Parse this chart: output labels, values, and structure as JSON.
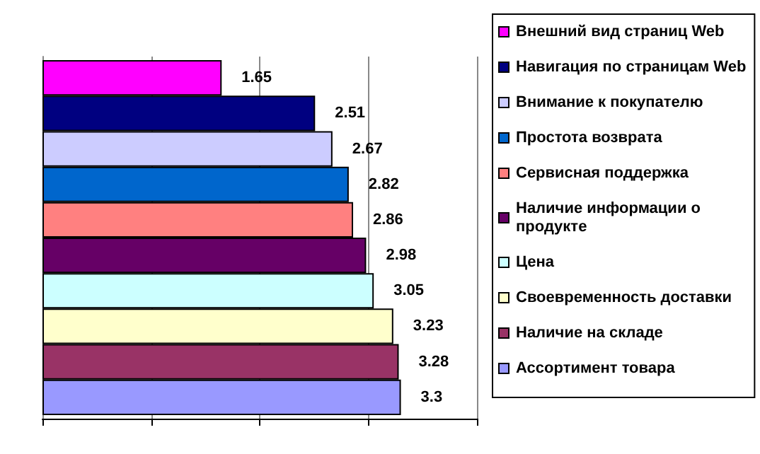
{
  "chart_data": {
    "type": "bar",
    "orientation": "horizontal",
    "categories": [
      null
    ],
    "series": [
      {
        "name": "Внешний вид страниц Web",
        "color": "#ff00ff",
        "values": [
          1.65
        ]
      },
      {
        "name": "Навигация по страницам Web",
        "color": "#000080",
        "values": [
          2.51
        ]
      },
      {
        "name": "Внимание к покупателю",
        "color": "#ccccff",
        "values": [
          2.67
        ]
      },
      {
        "name": "Простота возврата",
        "color": "#0066cc",
        "values": [
          2.82
        ]
      },
      {
        "name": "Сервисная поддержка",
        "color": "#ff8080",
        "values": [
          2.86
        ]
      },
      {
        "name": "Наличие информации о продукте",
        "color": "#660066",
        "values": [
          2.98
        ]
      },
      {
        "name": "Цена",
        "color": "#ccffff",
        "values": [
          3.05
        ]
      },
      {
        "name": "Своевременность доставки",
        "color": "#ffffcc",
        "values": [
          3.23
        ]
      },
      {
        "name": "Наличие на складе",
        "color": "#993366",
        "values": [
          3.28
        ]
      },
      {
        "name": "Ассортимент товара",
        "color": "#9999ff",
        "values": [
          3.3
        ]
      }
    ],
    "tick_labels": false,
    "grid": "x",
    "legend": "right",
    "data_labels": true
  }
}
